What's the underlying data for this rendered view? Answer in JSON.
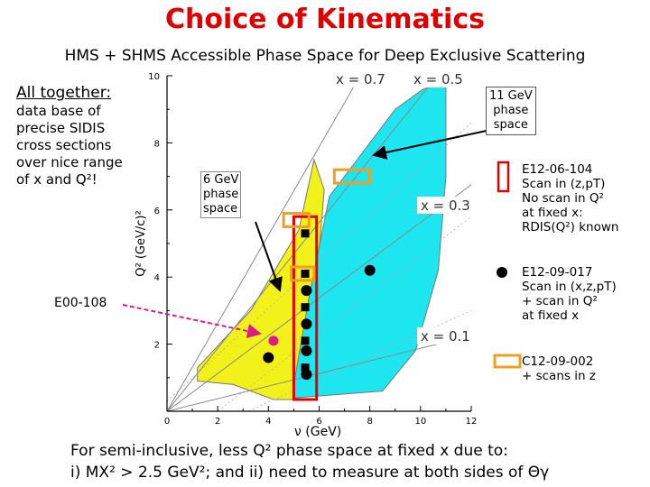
{
  "slide": {
    "title": "Choice of Kinematics",
    "subtitle": "HMS + SHMS Accessible Phase Space for Deep Exclusive Scattering"
  },
  "left_box": {
    "heading": "All together:",
    "lines": [
      "data base of",
      "precise SIDIS",
      "cross sections",
      "over nice range",
      "of x and Q²!"
    ]
  },
  "callouts": {
    "e00": "E00-108",
    "six_gev": [
      "6 GeV",
      "phase",
      "space"
    ],
    "eleven_gev": [
      "11 GeV",
      "phase",
      "space"
    ]
  },
  "experiments": {
    "e12_06_104": [
      "E12-06-104",
      "Scan in (z,pT)",
      "No scan in Q²",
      "at fixed x:",
      "RDIS(Q²) known"
    ],
    "e12_09_017": [
      "E12-09-017",
      "Scan in (x,z,pT)",
      "+ scan in Q²",
      "at fixed x"
    ],
    "c12_09_002": [
      "C12-09-002",
      "+ scans in z"
    ]
  },
  "bottom": {
    "line1": "For semi-inclusive, less Q² phase space at fixed x due to:",
    "line2": "i) MX² > 2.5 GeV²; and ii) need to measure at both sides of Θγ"
  },
  "colors": {
    "title": "#e00000",
    "six_gev_region": "#f2f21a",
    "eleven_gev_region": "#1ee6f0",
    "e12_06_104_box": "#e00000",
    "c12_09_002_box": "#f0a020",
    "e00_108_point": "#e0188c"
  },
  "chart_data": {
    "type": "scatter",
    "xlabel": "ν (GeV)",
    "ylabel": "Q² (GeV/c)²",
    "xlim": [
      0,
      12
    ],
    "ylim": [
      0,
      10
    ],
    "xticks": [
      0,
      2,
      4,
      6,
      8,
      10,
      12
    ],
    "yticks": [
      2,
      4,
      6,
      8,
      10
    ],
    "x_lines": [
      {
        "label": "x = 0.7",
        "x": 0.7
      },
      {
        "label": "x = 0.5",
        "x": 0.5
      },
      {
        "label": "x = 0.3",
        "x": 0.3
      },
      {
        "label": "x = 0.1",
        "x": 0.1
      }
    ],
    "series": [
      {
        "name": "E12-09-017",
        "marker": "black-circle",
        "points": [
          [
            5.5,
            3.6
          ],
          [
            5.5,
            2.6
          ],
          [
            5.5,
            1.8
          ],
          [
            5.5,
            1.1
          ],
          [
            8.0,
            4.2
          ],
          [
            4.0,
            1.6
          ]
        ]
      },
      {
        "name": "E12-06-104",
        "marker": "black-square",
        "points": [
          [
            5.45,
            5.3
          ],
          [
            5.45,
            4.1
          ],
          [
            5.45,
            3.1
          ],
          [
            5.45,
            2.1
          ],
          [
            5.45,
            1.3
          ]
        ]
      },
      {
        "name": "E00-108",
        "marker": "magenta-circle",
        "points": [
          [
            4.2,
            2.1
          ]
        ]
      }
    ],
    "regions": [
      {
        "name": "6 GeV phase space",
        "color": "#f2f21a",
        "polygon": [
          [
            1.2,
            0.9
          ],
          [
            2.6,
            0.8
          ],
          [
            4.2,
            0.35
          ],
          [
            5.0,
            0.35
          ],
          [
            5.5,
            2.0
          ],
          [
            6.0,
            4.8
          ],
          [
            6.2,
            6.6
          ],
          [
            5.8,
            7.5
          ],
          [
            5.2,
            5.4
          ],
          [
            3.3,
            3.0
          ],
          [
            1.2,
            1.3
          ]
        ]
      },
      {
        "name": "11 GeV phase space",
        "color": "#1ee6f0",
        "polygon": [
          [
            5.0,
            0.4
          ],
          [
            8.5,
            0.6
          ],
          [
            9.8,
            1.8
          ],
          [
            10.7,
            4.2
          ],
          [
            11.0,
            7.0
          ],
          [
            11.0,
            9.8
          ],
          [
            10.1,
            9.6
          ],
          [
            9.0,
            9.0
          ],
          [
            7.5,
            7.5
          ],
          [
            6.4,
            6.4
          ],
          [
            5.6,
            3.4
          ],
          [
            5.0,
            0.8
          ]
        ]
      }
    ],
    "boxes": [
      {
        "name": "E12-06-104",
        "color": "#e00000",
        "x": [
          5.0,
          5.9
        ],
        "y": [
          0.35,
          5.8
        ]
      },
      {
        "name": "C12-09-002",
        "color": "#f0a020",
        "x": [
          6.6,
          8.0
        ],
        "y": [
          6.8,
          7.2
        ]
      },
      {
        "name": "C12-09-002",
        "color": "#f0a020",
        "x": [
          4.6,
          5.6
        ],
        "y": [
          5.5,
          5.9
        ]
      },
      {
        "name": "C12-09-002",
        "color": "#f0a020",
        "x": [
          4.9,
          5.8
        ],
        "y": [
          3.9,
          4.3
        ]
      }
    ]
  }
}
